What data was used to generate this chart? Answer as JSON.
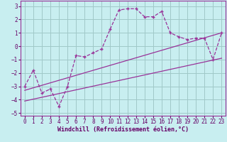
{
  "xlabel": "Windchill (Refroidissement éolien,°C)",
  "background_color": "#c8eef0",
  "grid_color": "#a0c8c8",
  "line_color": "#993399",
  "spine_color": "#993399",
  "xlim": [
    -0.5,
    23.5
  ],
  "ylim": [
    -5.2,
    3.4
  ],
  "xticks": [
    0,
    1,
    2,
    3,
    4,
    5,
    6,
    7,
    8,
    9,
    10,
    11,
    12,
    13,
    14,
    15,
    16,
    17,
    18,
    19,
    20,
    21,
    22,
    23
  ],
  "yticks": [
    -5,
    -4,
    -3,
    -2,
    -1,
    0,
    1,
    2,
    3
  ],
  "hours": [
    0,
    1,
    2,
    3,
    4,
    5,
    6,
    7,
    8,
    9,
    10,
    11,
    12,
    13,
    14,
    15,
    16,
    17,
    18,
    19,
    20,
    21,
    22,
    23
  ],
  "windchill": [
    -3.0,
    -1.8,
    -3.5,
    -3.2,
    -4.5,
    -3.0,
    -0.7,
    -0.8,
    -0.5,
    -0.2,
    1.3,
    2.7,
    2.8,
    2.8,
    2.2,
    2.2,
    2.6,
    1.0,
    0.7,
    0.5,
    0.6,
    0.6,
    -1.0,
    1.0
  ],
  "line1_x": [
    0,
    23
  ],
  "line1_y": [
    -3.3,
    1.0
  ],
  "line2_x": [
    0,
    23
  ],
  "line2_y": [
    -4.1,
    -0.9
  ],
  "xlabel_fontsize": 6,
  "tick_fontsize": 5.5,
  "xlabel_color": "#660066",
  "tick_color": "#660066"
}
